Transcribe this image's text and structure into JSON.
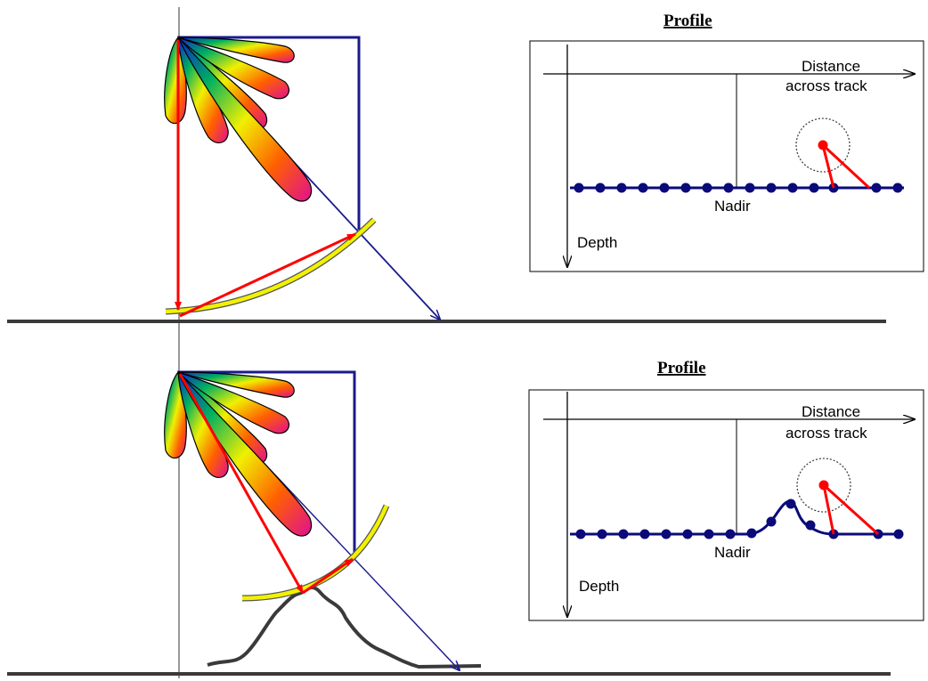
{
  "top_panel": {
    "profile_title": "Profile",
    "distance_label_line1": "Distance",
    "distance_label_line2": "across track",
    "nadir_label": "Nadir",
    "depth_label": "Depth"
  },
  "bottom_panel": {
    "profile_title": "Profile",
    "distance_label_line1": "Distance",
    "distance_label_line2": "across track",
    "nadir_label": "Nadir",
    "depth_label": "Depth"
  },
  "colors": {
    "beam_line": "#1a1a8c",
    "ray": "#ff0000",
    "wavefront": "#f2f200",
    "profile_dot": "#0a0a7a",
    "seafloor": "#3a3a3a"
  },
  "icons": {
    "beam_fan": "rainbow-lobe-fan"
  }
}
